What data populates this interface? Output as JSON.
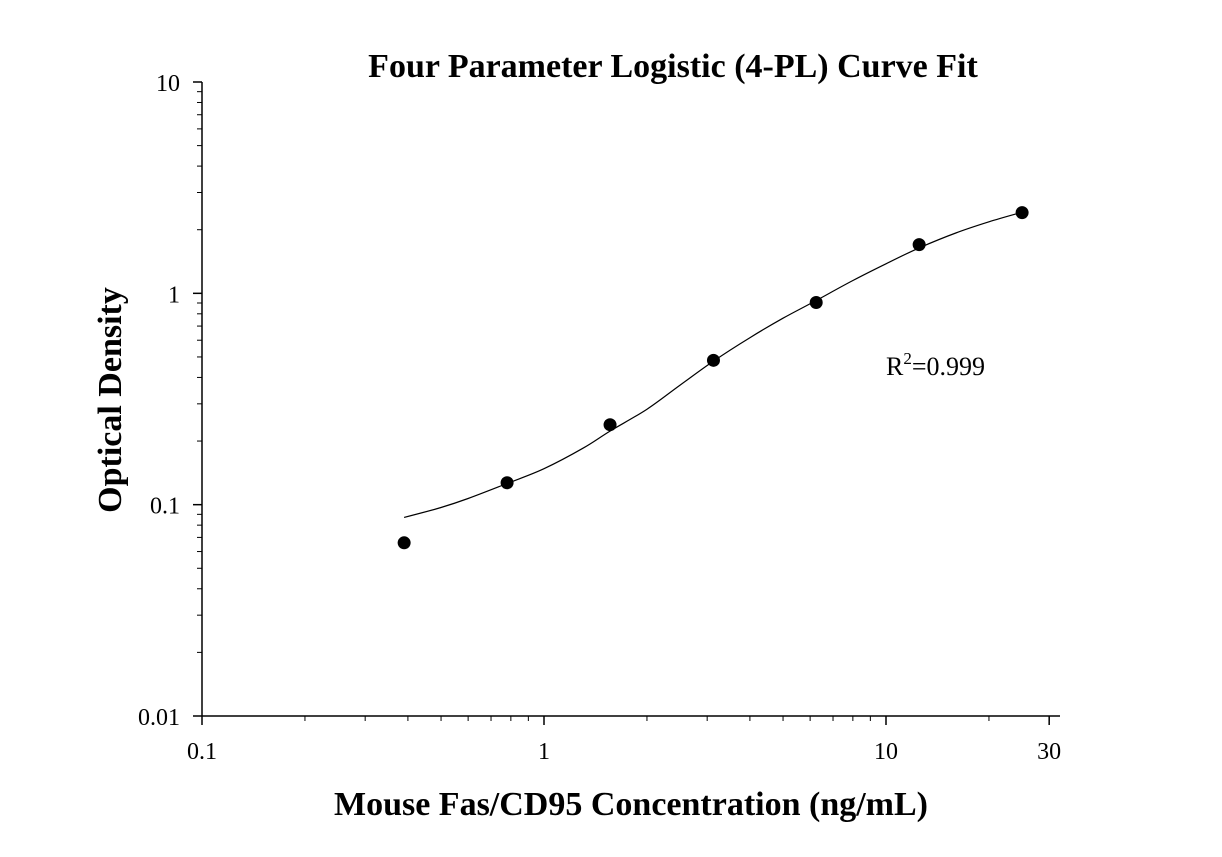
{
  "chart_data": {
    "type": "scatter",
    "title": "Four Parameter Logistic (4-PL) Curve Fit",
    "xlabel": "Mouse Fas/CD95 Concentration (ng/mL)",
    "ylabel": "Optical Density",
    "x_scale": "log",
    "y_scale": "log",
    "xlim": [
      0.1,
      30
    ],
    "ylim": [
      0.01,
      10
    ],
    "x_ticks": [
      {
        "value": 0.1,
        "label": "0.1"
      },
      {
        "value": 1,
        "label": "1"
      },
      {
        "value": 10,
        "label": "10"
      },
      {
        "value": 30,
        "label": "30"
      }
    ],
    "y_ticks": [
      {
        "value": 0.01,
        "label": "0.01"
      },
      {
        "value": 0.1,
        "label": "0.1"
      },
      {
        "value": 1,
        "label": "1"
      },
      {
        "value": 10,
        "label": "10"
      }
    ],
    "grid": false,
    "series": [
      {
        "kind": "points",
        "x": [
          0.39,
          0.78,
          1.56,
          3.13,
          6.25,
          12.5,
          25
        ],
        "y": [
          0.066,
          0.127,
          0.239,
          0.482,
          0.905,
          1.7,
          2.41
        ]
      },
      {
        "kind": "fit-curve",
        "x": [
          0.39,
          0.5,
          0.6,
          0.78,
          1.0,
          1.3,
          1.56,
          2.0,
          2.5,
          3.13,
          4.0,
          5.0,
          6.25,
          8.0,
          10.0,
          12.5,
          16.0,
          20.0,
          25.0
        ],
        "y": [
          0.087,
          0.097,
          0.107,
          0.126,
          0.148,
          0.185,
          0.223,
          0.283,
          0.368,
          0.478,
          0.617,
          0.763,
          0.925,
          1.15,
          1.38,
          1.64,
          1.93,
          2.18,
          2.42
        ]
      }
    ],
    "annotation": {
      "base": "R",
      "superscript": "2",
      "text": "=0.999"
    }
  }
}
